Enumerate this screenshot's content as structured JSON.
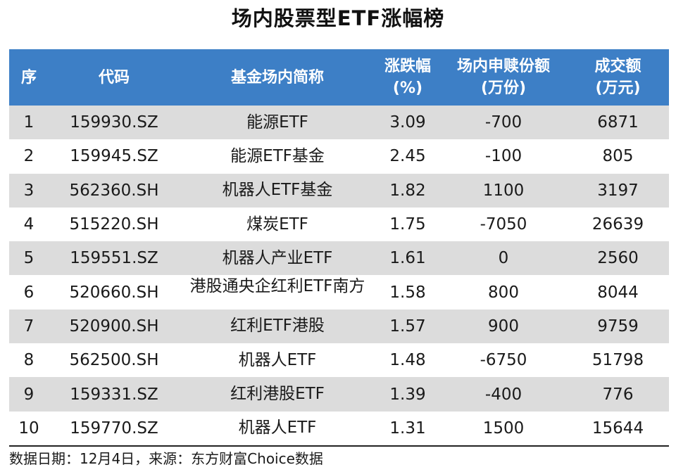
{
  "title": "场内股票型ETF涨幅榜",
  "table": {
    "headers": [
      {
        "line1": "序",
        "line2": ""
      },
      {
        "line1": "代码",
        "line2": ""
      },
      {
        "line1": "基金场内简称",
        "line2": ""
      },
      {
        "line1": "涨跌幅",
        "line2": "(%)"
      },
      {
        "line1": "场内申赎份额",
        "line2": "(万份)"
      },
      {
        "line1": "成交额",
        "line2": "(万元)"
      }
    ],
    "rows": [
      {
        "rank": "1",
        "code": "159930.SZ",
        "name": "能源ETF",
        "change": "3.09",
        "shares": "-700",
        "turnover": "6871"
      },
      {
        "rank": "2",
        "code": "159945.SZ",
        "name": "能源ETF基金",
        "change": "2.45",
        "shares": "-100",
        "turnover": "805"
      },
      {
        "rank": "3",
        "code": "562360.SH",
        "name": "机器人ETF基金",
        "change": "1.82",
        "shares": "1100",
        "turnover": "3197"
      },
      {
        "rank": "4",
        "code": "515220.SH",
        "name": "煤炭ETF",
        "change": "1.75",
        "shares": "-7050",
        "turnover": "26639"
      },
      {
        "rank": "5",
        "code": "159551.SZ",
        "name": "机器人产业ETF",
        "change": "1.61",
        "shares": "0",
        "turnover": "2560"
      },
      {
        "rank": "6",
        "code": "520660.SH",
        "name": "港股通央企红利ETF南方",
        "change": "1.58",
        "shares": "800",
        "turnover": "8044"
      },
      {
        "rank": "7",
        "code": "520900.SH",
        "name": "红利ETF港股",
        "change": "1.57",
        "shares": "900",
        "turnover": "9759"
      },
      {
        "rank": "8",
        "code": "562500.SH",
        "name": "机器人ETF",
        "change": "1.48",
        "shares": "-6750",
        "turnover": "51798"
      },
      {
        "rank": "9",
        "code": "159331.SZ",
        "name": "红利港股ETF",
        "change": "1.39",
        "shares": "-400",
        "turnover": "776"
      },
      {
        "rank": "10",
        "code": "159770.SZ",
        "name": "机器人ETF",
        "change": "1.31",
        "shares": "1500",
        "turnover": "15644"
      }
    ]
  },
  "footnote": "数据日期：12月4日，来源：东方财富Choice数据",
  "colors": {
    "header_bg": "#3d7fc6",
    "header_text": "#ffffff",
    "shaded_row": "#dcdcdc"
  }
}
